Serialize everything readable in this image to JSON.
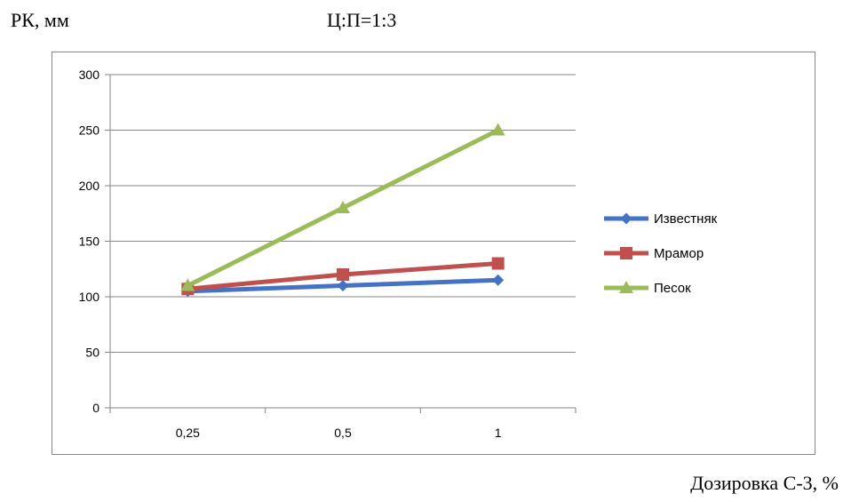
{
  "chart_data": {
    "type": "line",
    "title": "Ц:П=1:3",
    "ylabel": "РК, мм",
    "xlabel": "Дозировка С-3, %",
    "categories": [
      "0,25",
      "0,5",
      "1"
    ],
    "ylim": [
      0,
      300
    ],
    "yticks": [
      "0",
      "50",
      "100",
      "150",
      "200",
      "250",
      "300"
    ],
    "ytick_values": [
      0,
      50,
      100,
      150,
      200,
      250,
      300
    ],
    "grid": true,
    "legend_position": "right",
    "series": [
      {
        "name": "Известняк",
        "values": [
          105,
          110,
          115
        ],
        "color": "#4472C4",
        "marker": "diamond"
      },
      {
        "name": "Мрамор",
        "values": [
          107,
          120,
          130
        ],
        "color": "#C0504D",
        "marker": "square"
      },
      {
        "name": "Песок",
        "values": [
          110,
          180,
          250
        ],
        "color": "#9BBB59",
        "marker": "triangle"
      }
    ]
  }
}
